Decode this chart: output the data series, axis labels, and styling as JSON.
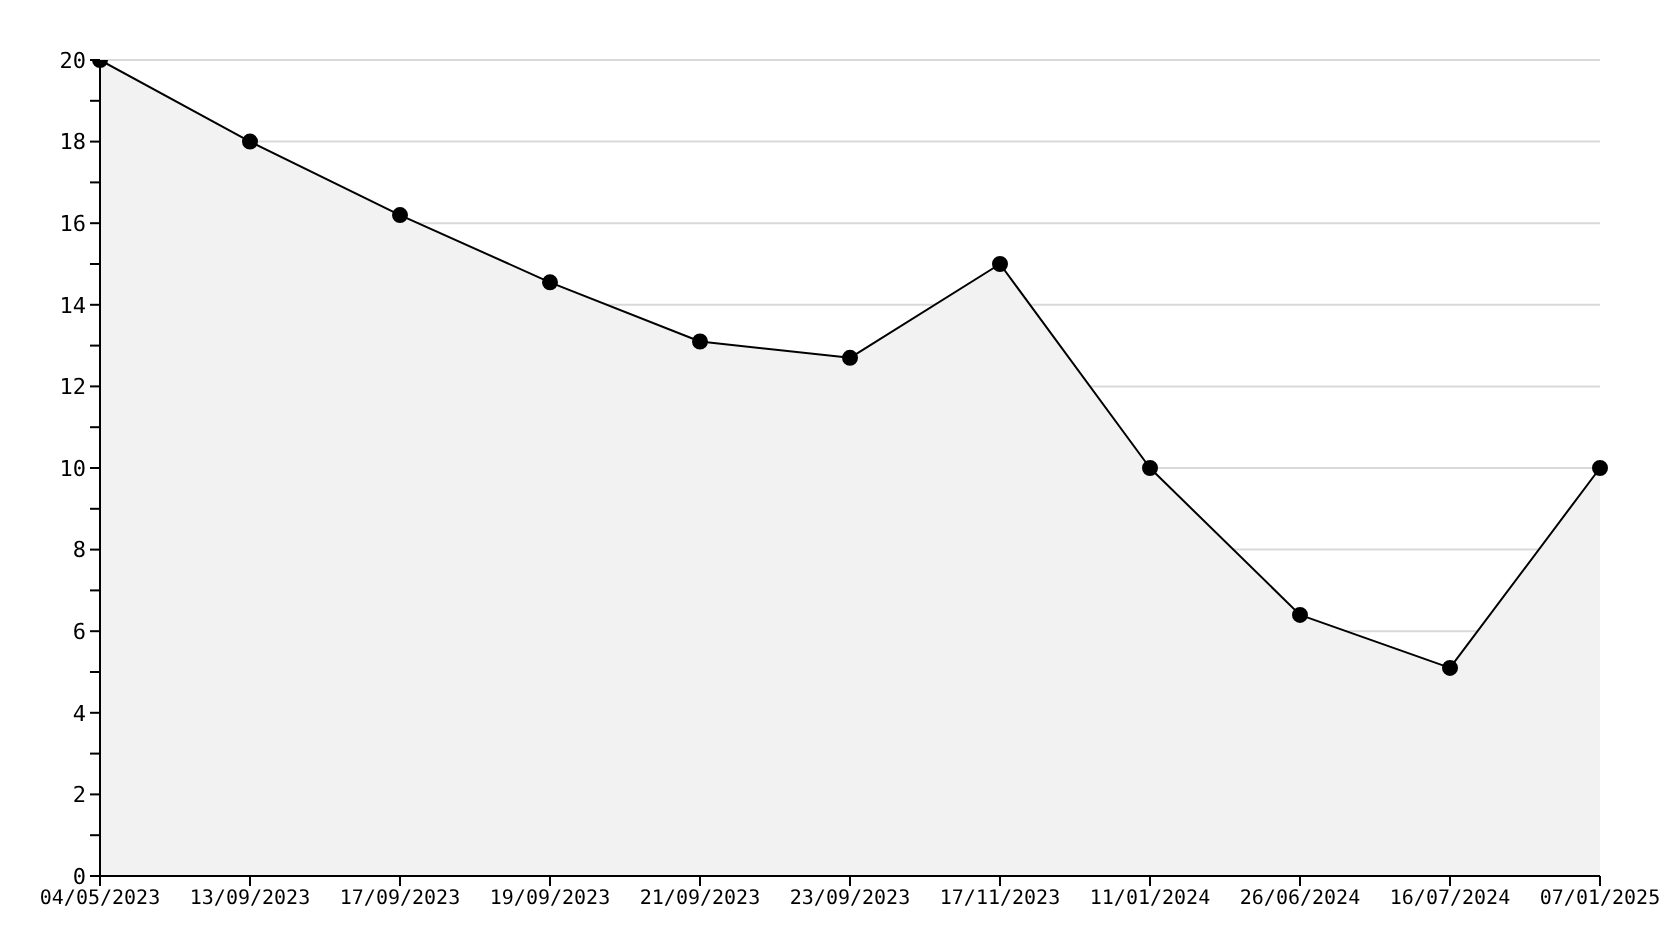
{
  "chart_data": {
    "type": "area",
    "categories": [
      "04/05/2023",
      "13/09/2023",
      "17/09/2023",
      "19/09/2023",
      "21/09/2023",
      "23/09/2023",
      "17/11/2023",
      "11/01/2024",
      "26/06/2024",
      "16/07/2024",
      "07/01/2025"
    ],
    "series": [
      {
        "color": "#000000",
        "values": [
          20,
          18,
          16.2,
          14.55,
          13.1,
          12.7,
          15,
          10,
          6.4,
          5.1,
          10
        ]
      }
    ],
    "ylim": [
      0,
      20
    ],
    "yticks": [
      0,
      {
        "value": 1,
        "label": null
      },
      2,
      {
        "value": 3,
        "label": null
      },
      4,
      {
        "value": 5,
        "label": null
      },
      6,
      {
        "value": 7,
        "label": null
      },
      8,
      {
        "value": 9,
        "label": null
      },
      10,
      {
        "value": 11,
        "label": null
      },
      12,
      {
        "value": 13,
        "label": null
      },
      14,
      {
        "value": 15,
        "label": null
      },
      16,
      {
        "value": 17,
        "label": null
      },
      18,
      {
        "value": 19,
        "label": null
      },
      20
    ],
    "grid": "y",
    "marker": "circle",
    "legend": false
  }
}
